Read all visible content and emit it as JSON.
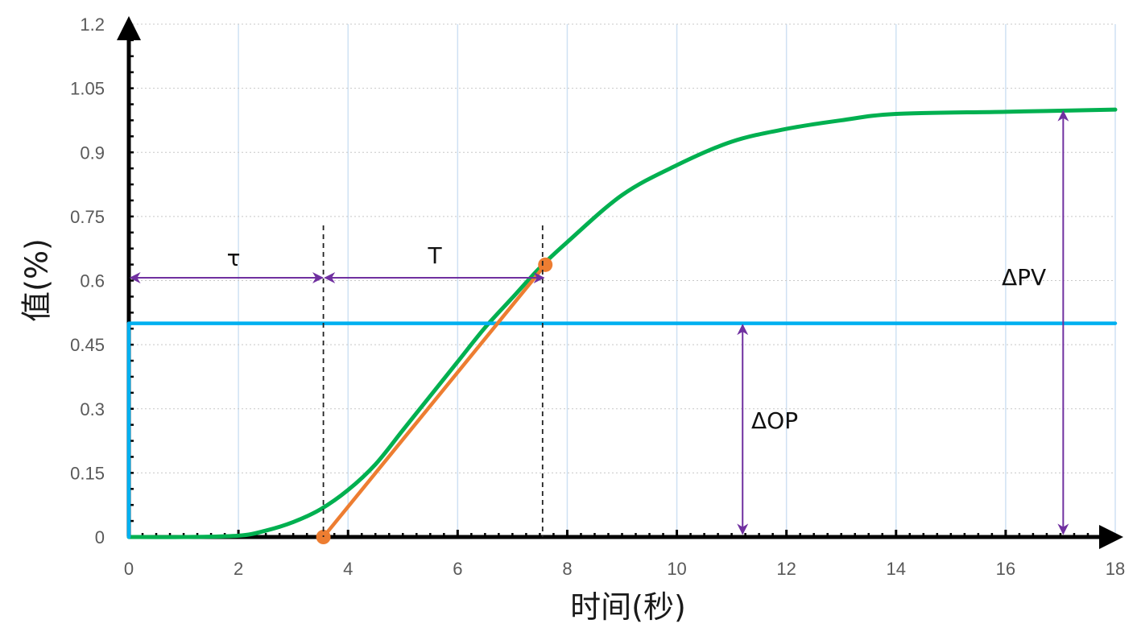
{
  "chart_data": {
    "type": "line",
    "xlabel": "时间(秒)",
    "ylabel": "值(%)",
    "xlim": [
      0,
      18
    ],
    "ylim": [
      0,
      1.2
    ],
    "x_ticks": [
      0,
      2,
      4,
      6,
      8,
      10,
      12,
      14,
      16,
      18
    ],
    "x_tick_labels": [
      "0",
      "2",
      "4",
      "6",
      "8",
      "10",
      "12",
      "14",
      "16",
      "18"
    ],
    "y_ticks": [
      0,
      0.15,
      0.3,
      0.45,
      0.6,
      0.75,
      0.9,
      1.05,
      1.2
    ],
    "y_tick_labels": [
      "0",
      "0.15",
      "0.3",
      "0.45",
      "0.6",
      "0.75",
      "0.9",
      "1.05",
      "1.2"
    ],
    "grid": true,
    "series": [
      {
        "color": "#00b050",
        "x": [
          0,
          1,
          2,
          2.5,
          3,
          3.5,
          4,
          4.5,
          5,
          5.5,
          6,
          6.5,
          7,
          7.5,
          8,
          9,
          10,
          11,
          12,
          13,
          14,
          16,
          18
        ],
        "values": [
          0,
          0,
          0.003,
          0.015,
          0.035,
          0.065,
          0.11,
          0.17,
          0.25,
          0.33,
          0.41,
          0.49,
          0.56,
          0.63,
          0.69,
          0.8,
          0.87,
          0.925,
          0.955,
          0.975,
          0.99,
          0.995,
          1.0
        ]
      },
      {
        "color": "#00b0f0",
        "x": [
          0,
          0,
          18
        ],
        "values": [
          0,
          0.5,
          0.5
        ]
      },
      {
        "color": "#ed7d31",
        "x": [
          3.55,
          7.6
        ],
        "values": [
          0,
          0.637
        ]
      }
    ],
    "points": [
      {
        "x": 3.55,
        "y": 0,
        "color": "#ed7d31"
      },
      {
        "x": 7.6,
        "y": 0.637,
        "color": "#ed7d31"
      }
    ],
    "annotations": {
      "tau": {
        "label": "τ",
        "from_x": 0,
        "to_x": 3.55,
        "y": 0.61
      },
      "T": {
        "label": "T",
        "from_x": 3.55,
        "to_x": 7.6,
        "y": 0.61
      },
      "dOP": {
        "label": "ΔOP",
        "x": 11.2,
        "from_y": 0,
        "to_y": 0.5
      },
      "dPV": {
        "label": "ΔPV",
        "x": 17.05,
        "from_y": 0,
        "to_y": 1.0
      },
      "dashed_lines_x": [
        3.55,
        7.55
      ],
      "arrow_color": "#7030a0"
    }
  }
}
